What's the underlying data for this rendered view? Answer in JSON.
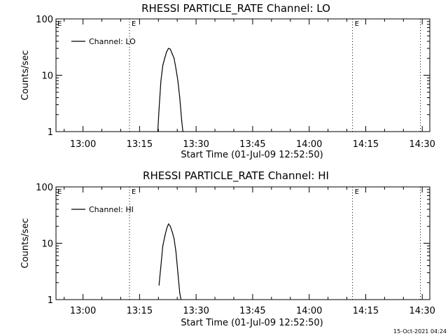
{
  "chart_data": [
    {
      "type": "line",
      "title": "RHESSI PARTICLE_RATE Channel: LO",
      "xlabel": "Start Time (01-Jul-09 12:52:50)",
      "ylabel": "Counts/sec",
      "y_scale": "log",
      "xlim": [
        "12:52:50",
        "14:32:00"
      ],
      "ylim": [
        1,
        100
      ],
      "x_ticks": [
        "13:00",
        "13:15",
        "13:30",
        "13:45",
        "14:00",
        "14:15",
        "14:30"
      ],
      "y_ticks": [
        "1",
        "10",
        "100"
      ],
      "grid": false,
      "legend": "top-left",
      "vlines": [
        {
          "x": "13:12:20",
          "label": "E"
        },
        {
          "x": "14:11:30",
          "label": "E"
        },
        {
          "x": "14:29:30",
          "label": ""
        }
      ],
      "edge_marks": [
        "E"
      ],
      "series": [
        {
          "name": "Channel: LO",
          "color": "#000000",
          "x": [
            "13:19:50",
            "13:20:10",
            "13:20:40",
            "13:21:10",
            "13:21:40",
            "13:22:10",
            "13:22:40",
            "13:23:10",
            "13:23:40",
            "13:24:10",
            "13:24:40",
            "13:25:10",
            "13:25:40",
            "13:26:10",
            "13:26:30"
          ],
          "values": [
            1,
            2.5,
            8,
            15,
            20,
            26,
            30,
            29,
            24,
            20,
            13,
            8,
            4,
            1.6,
            1
          ]
        }
      ]
    },
    {
      "type": "line",
      "title": "RHESSI PARTICLE_RATE Channel: HI",
      "xlabel": "Start Time (01-Jul-09 12:52:50)",
      "ylabel": "Counts/sec",
      "y_scale": "log",
      "xlim": [
        "12:52:50",
        "14:32:00"
      ],
      "ylim": [
        1,
        100
      ],
      "x_ticks": [
        "13:00",
        "13:15",
        "13:30",
        "13:45",
        "14:00",
        "14:15",
        "14:30"
      ],
      "y_ticks": [
        "1",
        "10",
        "100"
      ],
      "grid": false,
      "legend": "top-left",
      "vlines": [
        {
          "x": "13:12:20",
          "label": "E"
        },
        {
          "x": "14:11:30",
          "label": "E"
        },
        {
          "x": "14:29:30",
          "label": ""
        }
      ],
      "edge_marks": [
        "E"
      ],
      "series": [
        {
          "name": "Channel: HI",
          "color": "#000000",
          "x": [
            "13:20:10",
            "13:20:40",
            "13:21:10",
            "13:21:40",
            "13:22:10",
            "13:22:40",
            "13:23:10",
            "13:23:40",
            "13:24:10",
            "13:24:40",
            "13:25:10",
            "13:25:40",
            "13:26:00"
          ],
          "values": [
            1.8,
            4,
            9,
            13,
            18,
            22,
            20,
            16,
            12,
            7,
            3,
            1.3,
            1
          ]
        }
      ]
    }
  ],
  "footer": {
    "timestamp": "15-Oct-2021 04:24"
  }
}
